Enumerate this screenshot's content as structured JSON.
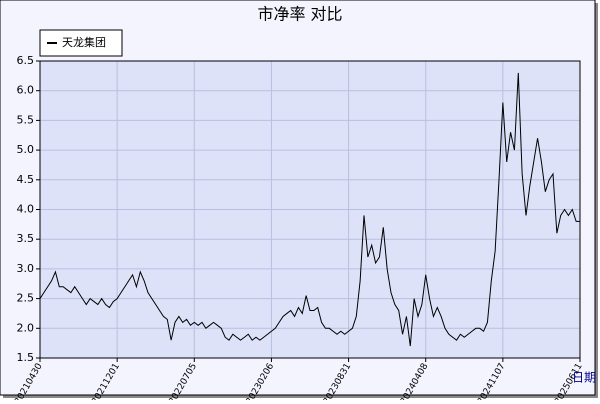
{
  "chart_data": {
    "type": "line",
    "title": "市净率  对比",
    "x_label": "日期",
    "categories": [
      "20210430",
      null,
      null,
      null,
      null,
      null,
      null,
      null,
      null,
      null,
      null,
      null,
      null,
      null,
      null,
      null,
      null,
      null,
      null,
      null,
      "20211201",
      null,
      null,
      null,
      null,
      null,
      null,
      null,
      null,
      null,
      null,
      null,
      null,
      null,
      null,
      null,
      null,
      null,
      null,
      null,
      "20220705",
      null,
      null,
      null,
      null,
      null,
      null,
      null,
      null,
      null,
      null,
      null,
      null,
      null,
      null,
      null,
      null,
      null,
      null,
      null,
      "20230206",
      null,
      null,
      null,
      null,
      null,
      null,
      null,
      null,
      null,
      null,
      null,
      null,
      null,
      null,
      null,
      null,
      null,
      null,
      null,
      "20230831",
      null,
      null,
      null,
      null,
      null,
      null,
      null,
      null,
      null,
      null,
      null,
      null,
      null,
      null,
      null,
      null,
      null,
      null,
      null,
      "20240408",
      null,
      null,
      null,
      null,
      null,
      null,
      null,
      null,
      null,
      null,
      null,
      null,
      null,
      null,
      null,
      null,
      null,
      null,
      null,
      "20241107",
      null,
      null,
      null,
      null,
      null,
      null,
      null,
      null,
      null,
      null,
      null,
      null,
      null,
      null,
      null,
      null,
      null,
      null,
      null,
      "20250611"
    ],
    "series": [
      {
        "name": "天龙集团",
        "color": "#000000",
        "values": [
          2.5,
          2.6,
          2.7,
          2.8,
          2.95,
          2.7,
          2.7,
          2.65,
          2.6,
          2.7,
          2.6,
          2.5,
          2.4,
          2.5,
          2.45,
          2.4,
          2.5,
          2.4,
          2.35,
          2.45,
          2.5,
          2.6,
          2.7,
          2.8,
          2.9,
          2.7,
          2.95,
          2.8,
          2.6,
          2.5,
          2.4,
          2.3,
          2.2,
          2.15,
          1.8,
          2.1,
          2.2,
          2.1,
          2.15,
          2.05,
          2.1,
          2.05,
          2.1,
          2.0,
          2.05,
          2.1,
          2.05,
          2.0,
          1.85,
          1.8,
          1.9,
          1.85,
          1.8,
          1.85,
          1.9,
          1.8,
          1.85,
          1.8,
          1.85,
          1.9,
          1.95,
          2.0,
          2.1,
          2.2,
          2.25,
          2.3,
          2.2,
          2.35,
          2.25,
          2.55,
          2.3,
          2.3,
          2.35,
          2.1,
          2.0,
          2.0,
          1.95,
          1.9,
          1.95,
          1.9,
          1.95,
          2.0,
          2.2,
          2.8,
          3.9,
          3.2,
          3.4,
          3.1,
          3.2,
          3.7,
          3.0,
          2.6,
          2.4,
          2.3,
          1.9,
          2.2,
          1.7,
          2.5,
          2.2,
          2.4,
          2.9,
          2.5,
          2.2,
          2.35,
          2.2,
          2.0,
          1.9,
          1.85,
          1.8,
          1.9,
          1.85,
          1.9,
          1.95,
          2.0,
          2.0,
          1.95,
          2.1,
          2.8,
          3.3,
          4.5,
          5.8,
          4.8,
          5.3,
          5.0,
          6.3,
          4.6,
          3.9,
          4.4,
          4.8,
          5.2,
          4.8,
          4.3,
          4.5,
          4.6,
          3.6,
          3.9,
          4.0,
          3.9,
          4.0,
          3.8,
          3.8
        ]
      }
    ],
    "ylim": [
      1.5,
      6.5
    ],
    "yticks": [
      1.5,
      {
        "value": 2,
        "label": "2.0"
      },
      2.5,
      {
        "value": 3,
        "label": "3.0"
      },
      3.5,
      {
        "value": 4,
        "label": "4.0"
      },
      4.5,
      {
        "value": 5,
        "label": "5.0"
      },
      5.5,
      {
        "value": 6,
        "label": "6.0"
      },
      6.5
    ],
    "grid": true,
    "legend": "upper left"
  }
}
